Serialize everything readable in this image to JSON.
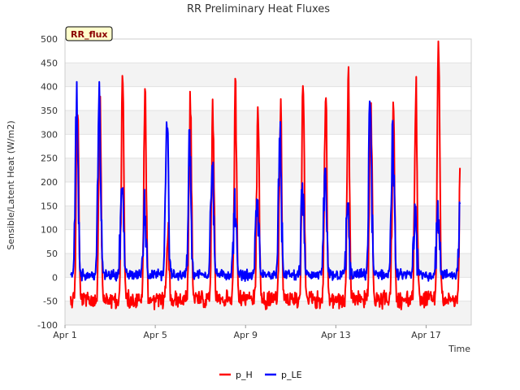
{
  "chart_data": {
    "type": "line",
    "title": "RR Preliminary Heat Fluxes",
    "xlabel": "Time",
    "ylabel": "Sensible/Latent Heat (W/m2)",
    "ylim": [
      -100,
      500
    ],
    "yticks": [
      -100,
      -50,
      0,
      50,
      100,
      150,
      200,
      250,
      300,
      350,
      400,
      450,
      500
    ],
    "xlim": [
      0,
      18.0
    ],
    "xticks": [
      {
        "day": 0,
        "label": "Apr 1"
      },
      {
        "day": 4,
        "label": "Apr 5"
      },
      {
        "day": 8,
        "label": "Apr 9"
      },
      {
        "day": 12,
        "label": "Apr 13"
      },
      {
        "day": 16,
        "label": "Apr 17"
      }
    ],
    "site_label": "RR_flux",
    "legend": [
      "p_H",
      "p_LE"
    ],
    "day_range": [
      0.25,
      17.5
    ],
    "series": [
      {
        "name": "p_H",
        "color": "#ff0000",
        "night_level": -35,
        "daily_peak_H": [
          363,
          432,
          388,
          110,
          372,
          352,
          385,
          372,
          358,
          436,
          400,
          412,
          375,
          335,
          392,
          487,
          410
        ]
      },
      {
        "name": "p_LE",
        "color": "#0000ff",
        "night_level": 5,
        "daily_peak_LE": [
          365,
          210,
          145,
          335,
          290,
          260,
          150,
          160,
          298,
          175,
          195,
          155,
          372,
          295,
          125,
          152,
          160
        ]
      }
    ]
  }
}
